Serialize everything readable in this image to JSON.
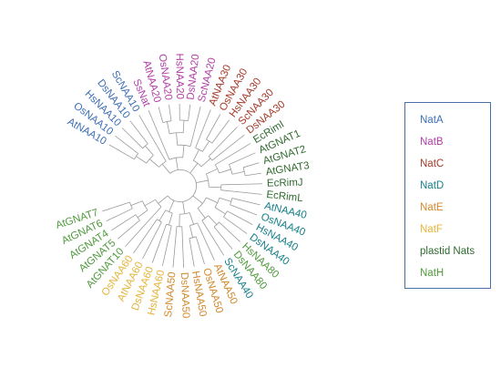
{
  "colors": {
    "NatA": "#3d6fb6",
    "NatB": "#b23fa6",
    "NatC": "#a43a2a",
    "NatD": "#16808a",
    "NatE": "#d3882a",
    "NatF": "#e5b43b",
    "plastid": "#2f6b2f",
    "NatH": "#4f9a3c"
  },
  "legend": {
    "items": [
      {
        "label": "NatA",
        "color": "#3d6fb6"
      },
      {
        "label": "NatB",
        "color": "#b23fa6"
      },
      {
        "label": "NatC",
        "color": "#a43a2a"
      },
      {
        "label": "NatD",
        "color": "#16808a"
      },
      {
        "label": "NatE",
        "color": "#d3882a"
      },
      {
        "label": "NatF",
        "color": "#e5b43b"
      },
      {
        "label": "plastid Nats",
        "color": "#2f6b2f"
      },
      {
        "label": "NatH",
        "color": "#4f9a3c"
      }
    ]
  },
  "tree": {
    "leaves": [
      {
        "label": "AtNAA10",
        "group": "NatA"
      },
      {
        "label": "OsNAA10",
        "group": "NatA"
      },
      {
        "label": "HsNAA10",
        "group": "NatA"
      },
      {
        "label": "DsNAA10",
        "group": "NatA"
      },
      {
        "label": "ScNAA10",
        "group": "NatA"
      },
      {
        "label": "SsNat",
        "group": "NatB"
      },
      {
        "label": "AtNAA20",
        "group": "NatB"
      },
      {
        "label": "OsNAA20",
        "group": "NatB"
      },
      {
        "label": "HsNAA20",
        "group": "NatB"
      },
      {
        "label": "DsNAA20",
        "group": "NatB"
      },
      {
        "label": "ScNAA20",
        "group": "NatB"
      },
      {
        "label": "AtNAA30",
        "group": "NatC"
      },
      {
        "label": "OsNAA30",
        "group": "NatC"
      },
      {
        "label": "HsNAA30",
        "group": "NatC"
      },
      {
        "label": "ScNAA30",
        "group": "NatC"
      },
      {
        "label": "DsNAA30",
        "group": "NatC"
      },
      {
        "label": "EcRimI",
        "group": "plastid"
      },
      {
        "label": "AtGNAT1",
        "group": "plastid"
      },
      {
        "label": "AtGNAT2",
        "group": "plastid"
      },
      {
        "label": "AtGNAT3",
        "group": "plastid"
      },
      {
        "label": "EcRimJ",
        "group": "plastid"
      },
      {
        "label": "EcRimL",
        "group": "plastid"
      },
      {
        "label": "AtNAA40",
        "group": "NatD"
      },
      {
        "label": "OsNAA40",
        "group": "NatD"
      },
      {
        "label": "HsNAA40",
        "group": "NatD"
      },
      {
        "label": "DsNAA40",
        "group": "NatD"
      },
      {
        "label": "HsNAA80",
        "group": "NatH"
      },
      {
        "label": "DsNAA80",
        "group": "NatH"
      },
      {
        "label": "ScNAA40",
        "group": "NatD"
      },
      {
        "label": "AtNAA50",
        "group": "NatE"
      },
      {
        "label": "OsNAA50",
        "group": "NatE"
      },
      {
        "label": "HsNAA50",
        "group": "NatE"
      },
      {
        "label": "DsNAA50",
        "group": "NatE"
      },
      {
        "label": "ScNAA50",
        "group": "NatE"
      },
      {
        "label": "HsNAA60",
        "group": "NatF"
      },
      {
        "label": "DsNAA60",
        "group": "NatF"
      },
      {
        "label": "AtNAA60",
        "group": "NatF"
      },
      {
        "label": "OsNAA60",
        "group": "NatF"
      },
      {
        "label": "AtGNAT10",
        "group": "NatH"
      },
      {
        "label": "AtGNAT5",
        "group": "NatH"
      },
      {
        "label": "AtGNAT4",
        "group": "NatH"
      },
      {
        "label": "AtGNAT6",
        "group": "NatH"
      },
      {
        "label": "AtGNAT7",
        "group": "NatH"
      }
    ]
  }
}
